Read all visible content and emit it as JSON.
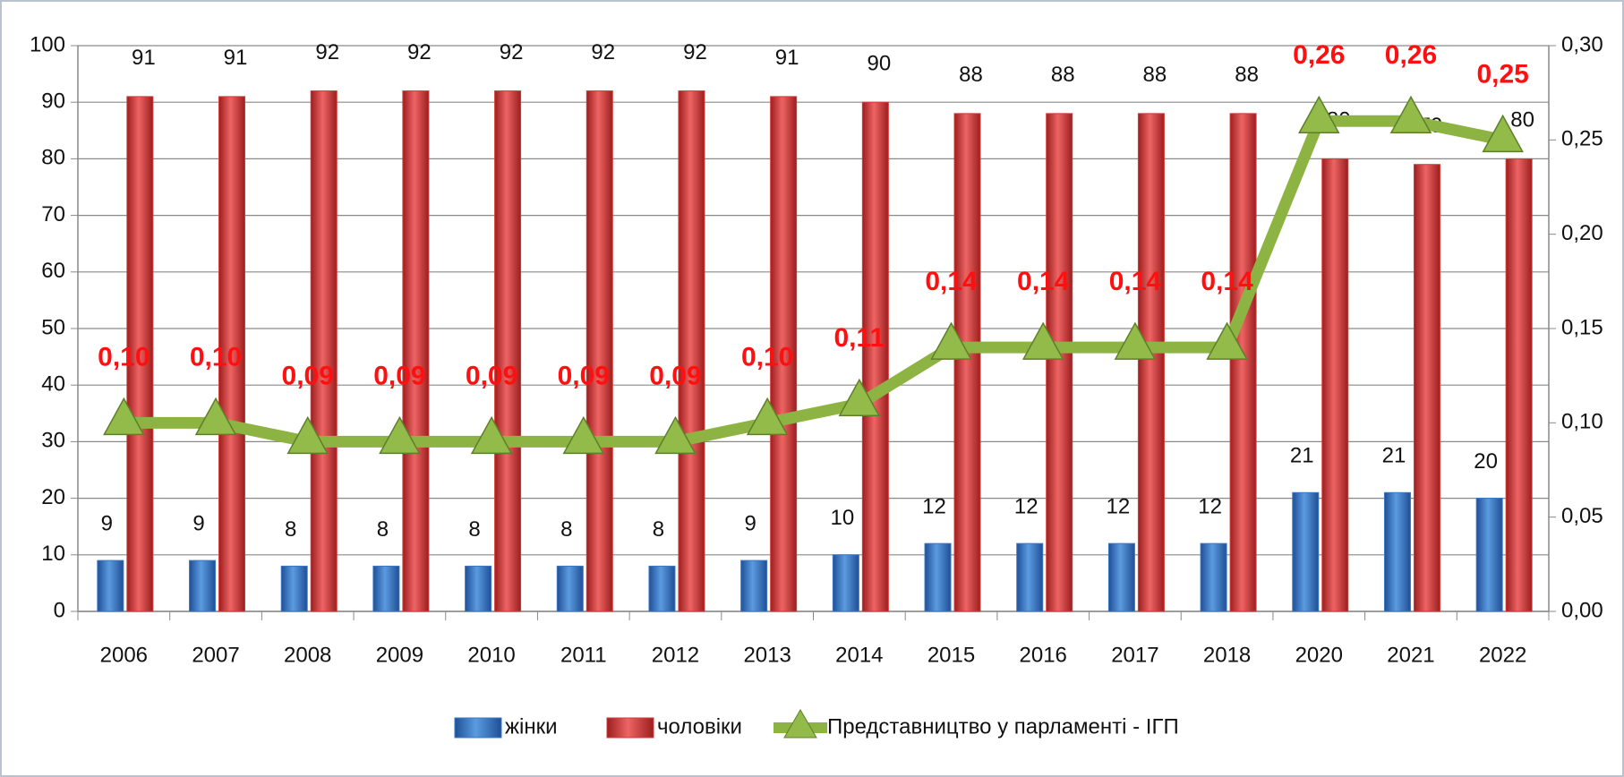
{
  "chart_data": {
    "type": "bar",
    "categories": [
      "2006",
      "2007",
      "2008",
      "2009",
      "2010",
      "2011",
      "2012",
      "2013",
      "2014",
      "2015",
      "2016",
      "2017",
      "2018",
      "2020",
      "2021",
      "2022"
    ],
    "series": [
      {
        "name": "жінки",
        "type": "bar",
        "color": "#3b78c8",
        "values": [
          9,
          9,
          8,
          8,
          8,
          8,
          8,
          9,
          10,
          12,
          12,
          12,
          12,
          21,
          21,
          20
        ]
      },
      {
        "name": "чоловіки",
        "type": "bar",
        "color": "#d43a3a",
        "values": [
          91,
          91,
          92,
          92,
          92,
          92,
          92,
          91,
          90,
          88,
          88,
          88,
          88,
          80,
          79,
          80
        ]
      },
      {
        "name": "Представництво у парламенті - ІГП",
        "type": "line",
        "axis": "y2",
        "color": "#8db442",
        "values": [
          0.1,
          0.1,
          0.09,
          0.09,
          0.09,
          0.09,
          0.09,
          0.1,
          0.11,
          0.14,
          0.14,
          0.14,
          0.14,
          0.26,
          0.26,
          0.25
        ],
        "value_labels": [
          "0,10",
          "0,10",
          "0,09",
          "0,09",
          "0,09",
          "0,09",
          "0,09",
          "0,10",
          "0,11",
          "0,14",
          "0,14",
          "0,14",
          "0,14",
          "0,26",
          "0,26",
          "0,25"
        ]
      }
    ],
    "ylim": [
      0,
      100
    ],
    "yticks": [
      0,
      10,
      20,
      30,
      40,
      50,
      60,
      70,
      80,
      90,
      100
    ],
    "y2lim": [
      0,
      0.3
    ],
    "y2ticks": [
      {
        "value": 0,
        "label": "0,00"
      },
      {
        "value": 0.05,
        "label": "0,05"
      },
      {
        "value": 0.1,
        "label": "0,10"
      },
      {
        "value": 0.15,
        "label": "0,15"
      },
      {
        "value": 0.2,
        "label": "0,20"
      },
      {
        "value": 0.25,
        "label": "0,25"
      },
      {
        "value": 0.3,
        "label": "0,30"
      }
    ],
    "grid": true,
    "legend": "bottom"
  }
}
